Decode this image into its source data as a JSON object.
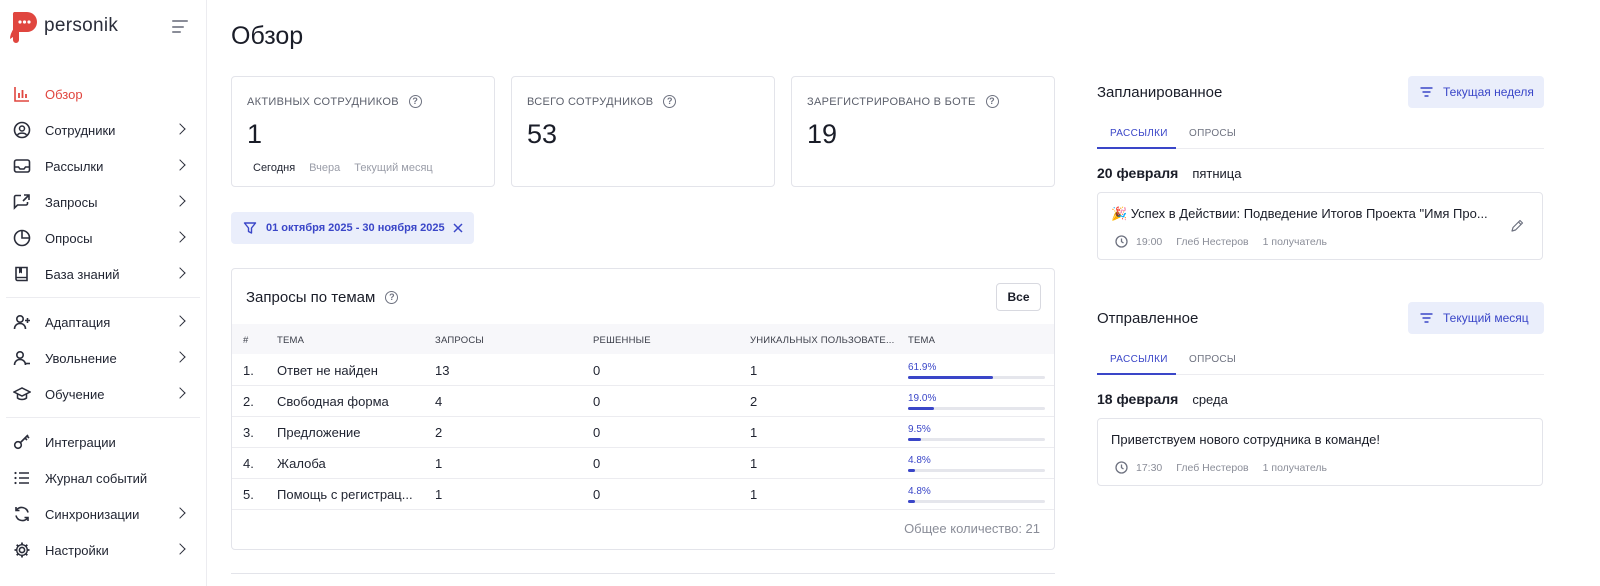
{
  "app": {
    "name": "personik"
  },
  "colors": {
    "brand": "#e0463f",
    "accent": "#3a46c8",
    "accent_bg": "#eaeefb"
  },
  "sidebar": {
    "items": [
      {
        "label": "Обзор",
        "icon": "chart-bars-icon",
        "active": true,
        "expandable": false
      },
      {
        "label": "Сотрудники",
        "icon": "user-circle-icon",
        "expandable": true
      },
      {
        "label": "Рассылки",
        "icon": "inbox-icon",
        "expandable": true
      },
      {
        "label": "Запросы",
        "icon": "external-request-icon",
        "expandable": true
      },
      {
        "label": "Опросы",
        "icon": "pie-chart-icon",
        "expandable": true
      },
      {
        "label": "База знаний",
        "icon": "book-icon",
        "expandable": true
      },
      {
        "label": "Адаптация",
        "icon": "user-plus-icon",
        "expandable": true
      },
      {
        "label": "Увольнение",
        "icon": "user-minus-icon",
        "expandable": true
      },
      {
        "label": "Обучение",
        "icon": "graduation-cap-icon",
        "expandable": true
      },
      {
        "label": "Интеграции",
        "icon": "key-icon",
        "expandable": false
      },
      {
        "label": "Журнал событий",
        "icon": "list-icon",
        "expandable": false
      },
      {
        "label": "Синхронизации",
        "icon": "sync-icon",
        "expandable": true
      },
      {
        "label": "Настройки",
        "icon": "gear-icon",
        "expandable": true
      }
    ]
  },
  "main": {
    "title": "Обзор",
    "stats": [
      {
        "label": "АКТИВНЫХ СОТРУДНИКОВ",
        "value": "1"
      },
      {
        "label": "ВСЕГО СОТРУДНИКОВ",
        "value": "53"
      },
      {
        "label": "ЗАРЕГИСТРИРОВАНО В БОТЕ",
        "value": "19"
      }
    ],
    "periods": {
      "today": "Сегодня",
      "yesterday": "Вчера",
      "month": "Текущий месяц"
    },
    "filter": {
      "label": "01 октября 2025 - 30 ноября 2025"
    },
    "requests": {
      "title": "Запросы по темам",
      "all_button": "Все",
      "columns": [
        "#",
        "ТЕМА",
        "ЗАПРОСЫ",
        "РЕШЕННЫЕ",
        "УНИКАЛЬНЫХ ПОЛЬЗОВАТЕ...",
        "ТЕМА"
      ],
      "rows": [
        {
          "n": "1.",
          "topic": "Ответ не найден",
          "requests": "13",
          "solved": "0",
          "unique": "1",
          "percent": "61.9%",
          "share": 0.619
        },
        {
          "n": "2.",
          "topic": "Свободная форма",
          "requests": "4",
          "solved": "0",
          "unique": "2",
          "percent": "19.0%",
          "share": 0.19
        },
        {
          "n": "3.",
          "topic": "Предложение",
          "requests": "2",
          "solved": "0",
          "unique": "1",
          "percent": "9.5%",
          "share": 0.095
        },
        {
          "n": "4.",
          "topic": "Жалоба",
          "requests": "1",
          "solved": "0",
          "unique": "1",
          "percent": "4.8%",
          "share": 0.048
        },
        {
          "n": "5.",
          "topic": "Помощь с регистрац...",
          "requests": "1",
          "solved": "0",
          "unique": "1",
          "percent": "4.8%",
          "share": 0.048
        }
      ],
      "total": "Общее количество: 21"
    }
  },
  "planned": {
    "title": "Запланированное",
    "filter_button": "Текущая неделя",
    "tabs": [
      "РАССЫЛКИ",
      "ОПРОСЫ"
    ],
    "date": "20 февраля",
    "weekday": "пятница",
    "event": {
      "title": "🎉 Успех в Действии: Подведение Итогов Проекта \"Имя Про...",
      "time": "19:00",
      "author": "Глеб Нестеров",
      "recipients": "1 получатель"
    }
  },
  "sent": {
    "title": "Отправленное",
    "filter_button": "Текущий месяц",
    "tabs": [
      "РАССЫЛКИ",
      "ОПРОСЫ"
    ],
    "date": "18 февраля",
    "weekday": "среда",
    "event": {
      "title": "Приветствуем нового сотрудника в команде!",
      "time": "17:30",
      "author": "Глеб Нестеров",
      "recipients": "1 получатель"
    }
  }
}
